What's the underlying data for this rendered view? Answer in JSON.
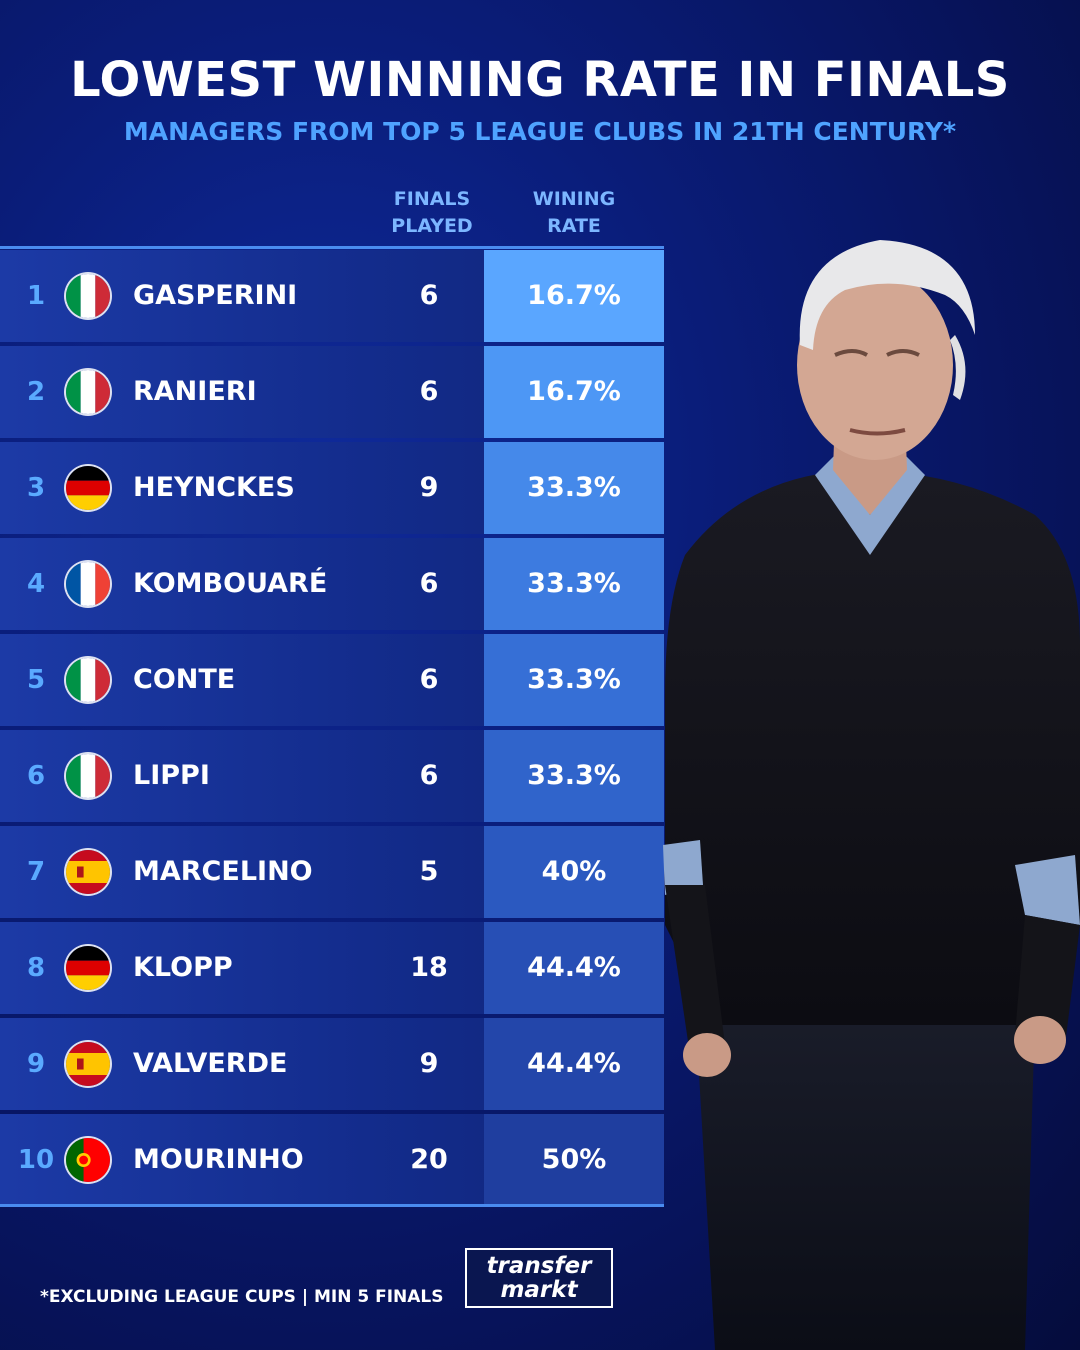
{
  "header": {
    "title": "LOWEST WINNING RATE IN FINALS",
    "subtitle": "MANAGERS FROM TOP 5 LEAGUE CLUBS IN 21TH CENTURY*"
  },
  "columns": {
    "finals_played_line1": "FINALS",
    "finals_played_line2": "PLAYED",
    "winning_rate_line1": "WINING",
    "winning_rate_line2": "RATE"
  },
  "rows": [
    {
      "rank": "1",
      "flag": "italy-flag-icon",
      "name": "GASPERINI",
      "finals_played": "6",
      "winning_rate": "16.7%",
      "rate_color": "#5aa6ff"
    },
    {
      "rank": "2",
      "flag": "italy-flag-icon",
      "name": "RANIERI",
      "finals_played": "6",
      "winning_rate": "16.7%",
      "rate_color": "#4d97f5"
    },
    {
      "rank": "3",
      "flag": "germany-flag-icon",
      "name": "HEYNCKES",
      "finals_played": "9",
      "winning_rate": "33.3%",
      "rate_color": "#4589ea"
    },
    {
      "rank": "4",
      "flag": "france-flag-icon",
      "name": "KOMBOUARÉ",
      "finals_played": "6",
      "winning_rate": "33.3%",
      "rate_color": "#3d7be0"
    },
    {
      "rank": "5",
      "flag": "italy-flag-icon",
      "name": "CONTE",
      "finals_played": "6",
      "winning_rate": "33.3%",
      "rate_color": "#366fd6"
    },
    {
      "rank": "6",
      "flag": "italy-flag-icon",
      "name": "LIPPI",
      "finals_played": "6",
      "winning_rate": "33.3%",
      "rate_color": "#3064cb"
    },
    {
      "rank": "7",
      "flag": "spain-flag-icon",
      "name": "MARCELINO",
      "finals_played": "5",
      "winning_rate": "40%",
      "rate_color": "#2b59c0"
    },
    {
      "rank": "8",
      "flag": "germany-flag-icon",
      "name": "KLOPP",
      "finals_played": "18",
      "winning_rate": "44.4%",
      "rate_color": "#274fb5"
    },
    {
      "rank": "9",
      "flag": "spain-flag-icon",
      "name": "VALVERDE",
      "finals_played": "9",
      "winning_rate": "44.4%",
      "rate_color": "#2346aa"
    },
    {
      "rank": "10",
      "flag": "portugal-flag-icon",
      "name": "MOURINHO",
      "finals_played": "20",
      "winning_rate": "50%",
      "rate_color": "#1f3e9f"
    }
  ],
  "footer": {
    "note": "*EXCLUDING LEAGUE CUPS | MIN 5 FINALS",
    "logo_line1": "transfer",
    "logo_line2": "markt"
  }
}
